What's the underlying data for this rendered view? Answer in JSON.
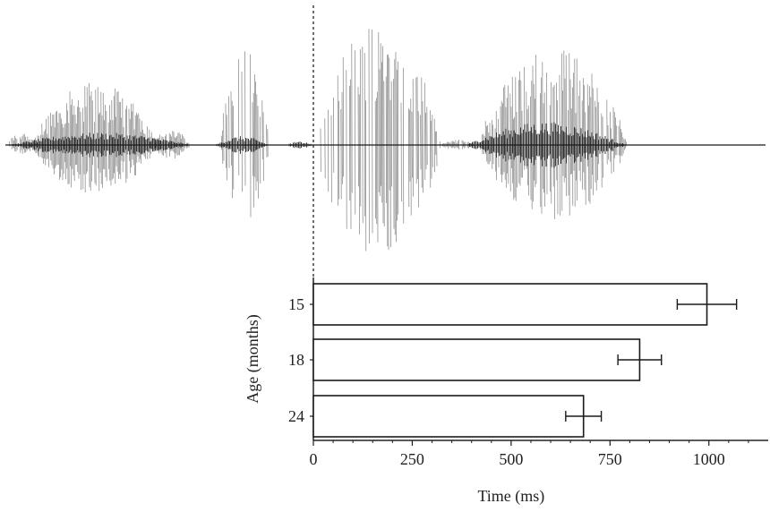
{
  "chart_data": {
    "type": "bar",
    "orientation": "horizontal",
    "categories": [
      "15",
      "18",
      "24"
    ],
    "values": [
      995,
      825,
      683
    ],
    "error_minus": [
      75,
      55,
      45
    ],
    "error_plus": [
      75,
      55,
      45
    ],
    "xlabel": "Time (ms)",
    "ylabel": "Age (months)",
    "xlim": [
      0,
      1150
    ],
    "xticks": [
      0,
      250,
      500,
      750,
      1000
    ],
    "grid": false,
    "legend": "none",
    "bar_fill": "#ffffff",
    "ink_color": "#1a1a1a",
    "waveform": {
      "description_marker_time": 0,
      "marker_style": "dashed"
    }
  }
}
